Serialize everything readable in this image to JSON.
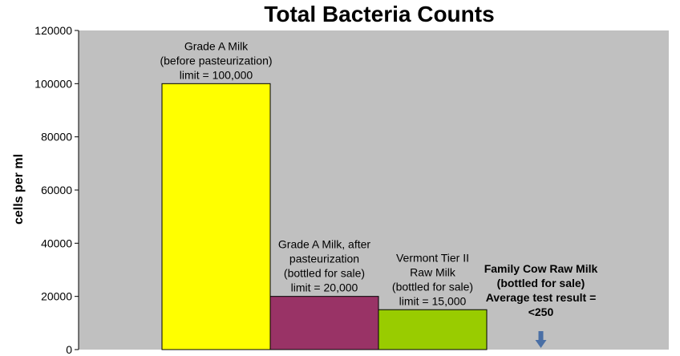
{
  "chart_data": {
    "type": "bar",
    "title": "Total Bacteria Counts",
    "ylabel": "cells per ml",
    "xlabel": "",
    "ylim": [
      0,
      120000
    ],
    "yticks": [
      0,
      20000,
      40000,
      60000,
      80000,
      100000,
      120000
    ],
    "grid": false,
    "legend": "none",
    "bars": [
      {
        "value": 100000,
        "color": "#ffff00",
        "label_lines": [
          "Grade A Milk",
          "(before pasteurization)",
          "limit = 100,000"
        ],
        "label_bold": false
      },
      {
        "value": 20000,
        "color": "#993366",
        "label_lines": [
          "Grade A Milk, after",
          "pasteurization",
          "(bottled for sale)",
          "limit = 20,000"
        ],
        "label_bold": false
      },
      {
        "value": 15000,
        "color": "#99cc00",
        "label_lines": [
          "Vermont Tier II",
          "Raw Milk",
          "(bottled for sale)",
          "limit = 15,000"
        ],
        "label_bold": false
      },
      {
        "value": 250,
        "color": "#ffffff",
        "label_lines": [
          "Family Cow Raw Milk",
          "(bottled for sale)",
          "Average test result =",
          "<250"
        ],
        "label_bold": true
      }
    ],
    "plot_background": "#c0c0c0",
    "arrow_color": "#4a6fa5",
    "arrow_icon": "down-arrow-icon"
  }
}
